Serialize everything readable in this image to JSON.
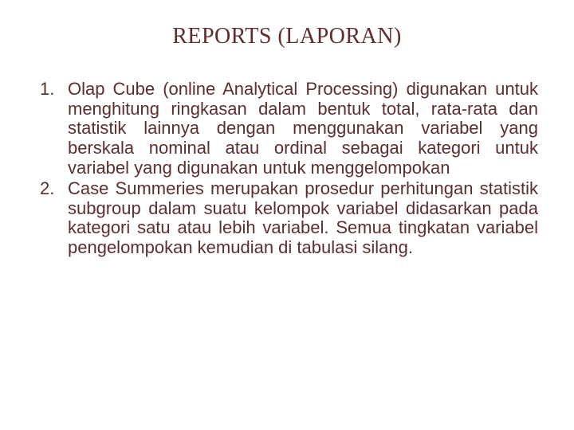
{
  "title": {
    "text": "REPORTS (LAPORAN)",
    "color": "#5c2e2e",
    "fontsize": 28
  },
  "body": {
    "color": "#5c2e2e",
    "fontsize": 22,
    "lineheight": 1.12
  },
  "items": [
    {
      "num": "1.",
      "text": "Olap Cube (online   Analytical Processing) digunakan untuk menghitung ringkasan dalam bentuk total, rata-rata dan statistik lainnya dengan menggunakan variabel yang berskala nominal atau ordinal sebagai kategori untuk variabel yang digunakan untuk menggelompokan"
    },
    {
      "num": "2.",
      "text": "Case Summeries merupakan prosedur perhitungan statistik subgroup dalam suatu kelompok variabel didasarkan pada kategori satu atau lebih variabel. Semua tingkatan variabel pengelompokan kemudian di tabulasi silang."
    }
  ]
}
